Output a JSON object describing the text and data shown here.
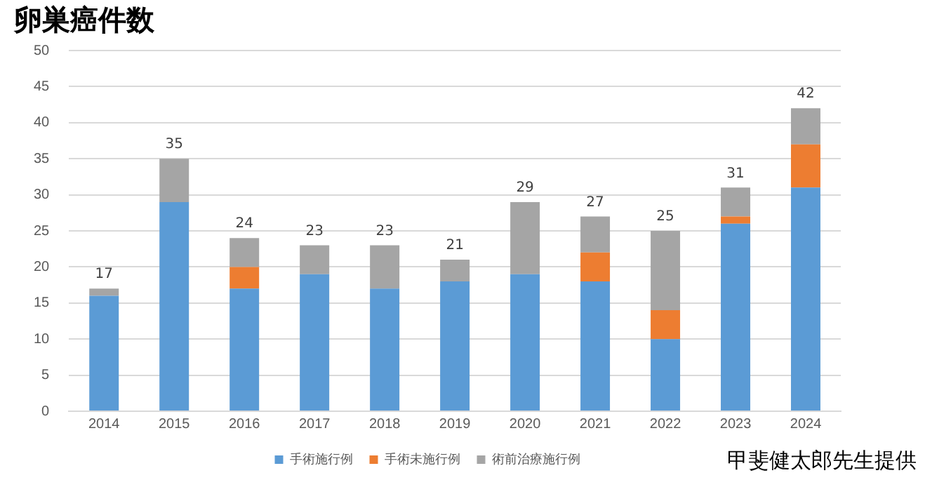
{
  "chart_data": {
    "type": "bar",
    "title": "卵巣癌件数",
    "stacked": true,
    "categories": [
      "2014",
      "2015",
      "2016",
      "2017",
      "2018",
      "2019",
      "2020",
      "2021",
      "2022",
      "2023",
      "2024"
    ],
    "series": [
      {
        "name": "手術施行例",
        "color": "#5b9bd5",
        "values": [
          16,
          29,
          17,
          19,
          17,
          18,
          19,
          18,
          10,
          26,
          31
        ]
      },
      {
        "name": "手術未施行例",
        "color": "#ed7d31",
        "values": [
          0,
          0,
          3,
          0,
          0,
          0,
          0,
          4,
          4,
          1,
          6
        ]
      },
      {
        "name": "術前治療施行例",
        "color": "#a5a5a5",
        "values": [
          1,
          6,
          4,
          4,
          6,
          3,
          10,
          5,
          11,
          4,
          5
        ]
      }
    ],
    "totals": [
      "17",
      "35",
      "24",
      "23",
      "23",
      "21",
      "29",
      "27",
      "25",
      "31",
      "42"
    ],
    "ylim": [
      0,
      50
    ],
    "yticks": [
      0,
      5,
      10,
      15,
      20,
      25,
      30,
      35,
      40,
      45,
      50
    ],
    "grid": "y",
    "legend": "bottom",
    "annotations": [
      "甲斐健太郎先生提供"
    ]
  }
}
